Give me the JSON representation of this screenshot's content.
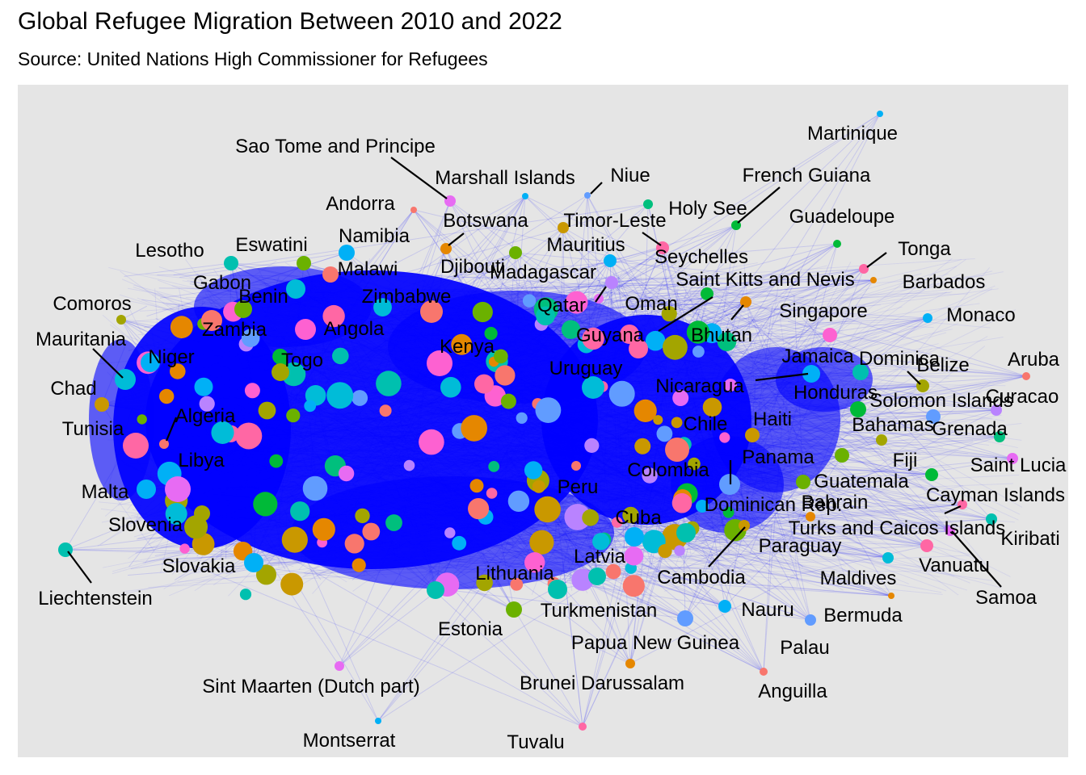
{
  "title": "Global Refugee Migration Between 2010 and 2022",
  "subtitle": "Source: United Nations High Commissioner for Refugees",
  "colors": {
    "panel": "#e5e5e5",
    "edge": "#0000ff",
    "palette": [
      "#f8766d",
      "#e58700",
      "#c99800",
      "#a3a500",
      "#6bb100",
      "#00ba38",
      "#00bf7d",
      "#00c0af",
      "#00bcd8",
      "#00b0f6",
      "#619cff",
      "#b983ff",
      "#e76bf3",
      "#fd61d1",
      "#ff67a4"
    ]
  },
  "nodes": [
    {
      "label": "Martinique"
    },
    {
      "label": "Niue"
    },
    {
      "label": "Marshall Islands"
    },
    {
      "label": "Sao Tome and Principe"
    },
    {
      "label": "French Guiana"
    },
    {
      "label": "Holy See"
    },
    {
      "label": "Guadeloupe"
    },
    {
      "label": "Andorra"
    },
    {
      "label": "Botswana"
    },
    {
      "label": "Timor-Leste"
    },
    {
      "label": "Tonga"
    },
    {
      "label": "Namibia"
    },
    {
      "label": "Eswatini"
    },
    {
      "label": "Lesotho"
    },
    {
      "label": "Mauritius"
    },
    {
      "label": "Seychelles"
    },
    {
      "label": "Djibouti"
    },
    {
      "label": "Madagascar"
    },
    {
      "label": "Malawi"
    },
    {
      "label": "Saint Kitts and Nevis"
    },
    {
      "label": "Barbados"
    },
    {
      "label": "Gabon"
    },
    {
      "label": "Benin"
    },
    {
      "label": "Zimbabwe"
    },
    {
      "label": "Qatar"
    },
    {
      "label": "Oman"
    },
    {
      "label": "Comoros"
    },
    {
      "label": "Singapore"
    },
    {
      "label": "Monaco"
    },
    {
      "label": "Zambia"
    },
    {
      "label": "Angola"
    },
    {
      "label": "Guyana"
    },
    {
      "label": "Bhutan"
    },
    {
      "label": "Mauritania"
    },
    {
      "label": "Kenya"
    },
    {
      "label": "Niger"
    },
    {
      "label": "Togo"
    },
    {
      "label": "Jamaica"
    },
    {
      "label": "Dominica"
    },
    {
      "label": "Aruba"
    },
    {
      "label": "Uruguay"
    },
    {
      "label": "Belize"
    },
    {
      "label": "Nicaragua"
    },
    {
      "label": "Chad"
    },
    {
      "label": "Honduras"
    },
    {
      "label": "Curacao"
    },
    {
      "label": "Solomon Islands"
    },
    {
      "label": "Algeria"
    },
    {
      "label": "Tunisia"
    },
    {
      "label": "Haiti"
    },
    {
      "label": "Chile"
    },
    {
      "label": "Bahamas"
    },
    {
      "label": "Grenada"
    },
    {
      "label": "Libya"
    },
    {
      "label": "Panama"
    },
    {
      "label": "Fiji"
    },
    {
      "label": "Saint Lucia"
    },
    {
      "label": "Colombia"
    },
    {
      "label": "Guatemala"
    },
    {
      "label": "Malta"
    },
    {
      "label": "Peru"
    },
    {
      "label": "Cayman Islands"
    },
    {
      "label": "Dominican Rep."
    },
    {
      "label": "Bahrain"
    },
    {
      "label": "Slovenia"
    },
    {
      "label": "Cuba"
    },
    {
      "label": "Turks and Caicos Islands"
    },
    {
      "label": "Kiribati"
    },
    {
      "label": "Paraguay"
    },
    {
      "label": "Vanuatu"
    },
    {
      "label": "Latvia"
    },
    {
      "label": "Slovakia"
    },
    {
      "label": "Liechtenstein"
    },
    {
      "label": "Lithuania"
    },
    {
      "label": "Cambodia"
    },
    {
      "label": "Maldives"
    },
    {
      "label": "Samoa"
    },
    {
      "label": "Turkmenistan"
    },
    {
      "label": "Nauru"
    },
    {
      "label": "Estonia"
    },
    {
      "label": "Bermuda"
    },
    {
      "label": "Papua New Guinea"
    },
    {
      "label": "Palau"
    },
    {
      "label": "Sint Maarten (Dutch part)"
    },
    {
      "label": "Brunei Darussalam"
    },
    {
      "label": "Anguilla"
    },
    {
      "label": "Montserrat"
    },
    {
      "label": "Tuvalu"
    }
  ]
}
